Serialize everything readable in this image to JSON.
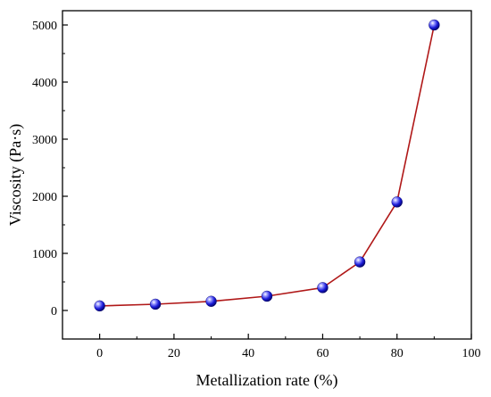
{
  "chart_data": {
    "type": "line",
    "title": "",
    "xlabel": "Metallization rate (%)",
    "ylabel": "Viscosity (Pa·s)",
    "xlim": [
      -10,
      100
    ],
    "ylim": [
      -500,
      5250
    ],
    "x_ticks": [
      0,
      20,
      40,
      60,
      80,
      100
    ],
    "y_ticks": [
      0,
      1000,
      2000,
      3000,
      4000,
      5000
    ],
    "grid": false,
    "legend": "none",
    "series": [
      {
        "x": [
          0,
          15,
          30,
          45,
          60,
          70,
          80,
          90
        ],
        "y": [
          80,
          110,
          160,
          250,
          400,
          850,
          1900,
          5000
        ],
        "line_color": "#b01818",
        "marker_color": "#1a1ad8",
        "marker": "sphere"
      }
    ]
  }
}
